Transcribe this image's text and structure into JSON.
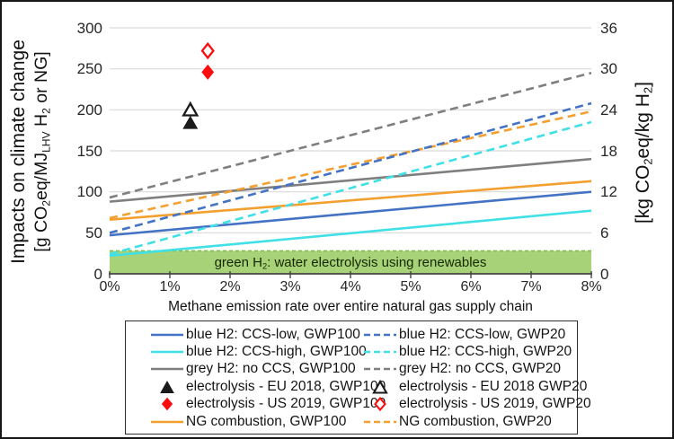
{
  "colors": {
    "blue": "#4472C4",
    "cyan": "#40E0E6",
    "grey": "#7F7F7F",
    "orange": "#F4A030",
    "red": "#FB0D0D",
    "black": "#1A1A1A",
    "band_fill": "#A7D277",
    "band_border": "#82BC50",
    "gridline": "#D9D9D9",
    "axis": "#444444"
  },
  "axes": {
    "y_left": {
      "title": "Impacts on climate change",
      "units": {
        "u1": "[g CO",
        "s1": "2",
        "u2": "eq/MJ",
        "s2": "LHV",
        "u3": " H",
        "s3": "2",
        "u4": " or NG]"
      }
    },
    "y_right": {
      "units": {
        "u1": "[kg CO",
        "s1": "2",
        "u2": "eq/kg H",
        "s2": "2",
        "u3": "]"
      }
    },
    "x": {
      "title": "Methane emission rate over entire natural gas supply chain"
    }
  },
  "band_label": {
    "p1": "green H",
    "s1": "2",
    "p2": ": water electrolysis using renewables"
  },
  "chart_data": {
    "type": "line",
    "x_axis": {
      "label": "Methane emission rate over entire natural gas supply chain",
      "min": 0,
      "max": 8,
      "tick_values": [
        0,
        1,
        2,
        3,
        4,
        5,
        6,
        7,
        8
      ],
      "tick_labels": [
        "0%",
        "1%",
        "2%",
        "3%",
        "4%",
        "5%",
        "6%",
        "7%",
        "8%"
      ]
    },
    "y_left_axis": {
      "label": "Impacts on climate change [g CO2eq/MJLHV H2 or NG]",
      "min": 0,
      "max": 300,
      "ticks": [
        0,
        50,
        100,
        150,
        200,
        250,
        300
      ]
    },
    "y_right_axis": {
      "label": "[kg CO2eq/kg H2]",
      "min": 0,
      "max": 36,
      "ticks": [
        0,
        6,
        12,
        18,
        24,
        30,
        36
      ]
    },
    "grid": "horizontal-only",
    "band": {
      "label": "green H2: water electrolysis using renewables",
      "from": 0,
      "to": 28
    },
    "series": [
      {
        "id": "blue-h2-ccs-high-gwp100",
        "label": "blue H2: CCS-high, GWP100",
        "color": "cyan",
        "style": "solid",
        "points": [
          [
            0,
            22
          ],
          [
            8,
            77
          ]
        ]
      },
      {
        "id": "blue-h2-ccs-low-gwp100",
        "label": "blue H2: CCS-low, GWP100",
        "color": "blue",
        "style": "solid",
        "points": [
          [
            0,
            47
          ],
          [
            8,
            100
          ]
        ]
      },
      {
        "id": "ng-combustion-gwp100",
        "label": "NG combustion, GWP100",
        "color": "orange",
        "style": "solid",
        "points": [
          [
            0,
            66
          ],
          [
            8,
            113
          ]
        ]
      },
      {
        "id": "grey-h2-no-ccs-gwp100",
        "label": "grey H2: no CCS, GWP100",
        "color": "grey",
        "style": "solid",
        "points": [
          [
            0,
            88
          ],
          [
            8,
            140
          ]
        ]
      },
      {
        "id": "blue-h2-ccs-high-gwp20",
        "label": "blue H2: CCS-high, GWP20",
        "color": "cyan",
        "style": "dashed",
        "points": [
          [
            0,
            24
          ],
          [
            8,
            185
          ]
        ]
      },
      {
        "id": "ng-combustion-gwp20",
        "label": "NG combustion, GWP20",
        "color": "orange",
        "style": "dashed",
        "points": [
          [
            0,
            68
          ],
          [
            8,
            198
          ]
        ]
      },
      {
        "id": "blue-h2-ccs-low-gwp20",
        "label": "blue H2: CCS-low, GWP20",
        "color": "blue",
        "style": "dashed",
        "points": [
          [
            0,
            50
          ],
          [
            8,
            208
          ]
        ]
      },
      {
        "id": "grey-h2-no-ccs-gwp20",
        "label": "grey H2: no CCS, GWP20",
        "color": "grey",
        "style": "dashed",
        "points": [
          [
            0,
            93
          ],
          [
            8,
            245
          ]
        ]
      }
    ],
    "points": [
      {
        "id": "electrolysis-eu-2018-gwp100",
        "label": "electrolysis - EU 2018, GWP100",
        "marker": "triangle",
        "fill": "filled",
        "color": "black",
        "x": 1.34,
        "y": 184
      },
      {
        "id": "electrolysis-eu-2018-gwp20",
        "label": "electrolysis - EU 2018 GWP20",
        "marker": "triangle",
        "fill": "open",
        "color": "black",
        "x": 1.34,
        "y": 200
      },
      {
        "id": "electrolysis-us-2019-gwp100",
        "label": "electrolysis - US 2019, GWP100",
        "marker": "diamond",
        "fill": "filled",
        "color": "red",
        "x": 1.63,
        "y": 246
      },
      {
        "id": "electrolysis-us-2019-gwp20",
        "label": "electrolysis - US 2019, GWP20",
        "marker": "diamond",
        "fill": "open",
        "color": "red",
        "x": 1.63,
        "y": 272
      }
    ],
    "legend_position": "bottom",
    "legend": {
      "col1": [
        {
          "swatch": "line",
          "style": "solid",
          "color": "blue",
          "label": "blue H2: CCS-low, GWP100"
        },
        {
          "swatch": "line",
          "style": "solid",
          "color": "cyan",
          "label": "blue H2: CCS-high, GWP100"
        },
        {
          "swatch": "line",
          "style": "solid",
          "color": "grey",
          "label": "grey H2: no CCS, GWP100"
        },
        {
          "swatch": "triangle",
          "style": "filled",
          "color": "black",
          "label": "electrolysis - EU 2018, GWP100"
        },
        {
          "swatch": "diamond",
          "style": "filled",
          "color": "red",
          "label": "electrolysis - US 2019, GWP100"
        },
        {
          "swatch": "line",
          "style": "solid",
          "color": "orange",
          "label": "NG combustion, GWP100"
        }
      ],
      "col2": [
        {
          "swatch": "line",
          "style": "dashed",
          "color": "blue",
          "label": "blue H2: CCS-low, GWP20"
        },
        {
          "swatch": "line",
          "style": "dashed",
          "color": "cyan",
          "label": "blue H2: CCS-high, GWP20"
        },
        {
          "swatch": "line",
          "style": "dashed",
          "color": "grey",
          "label": "grey H2: no CCS, GWP20"
        },
        {
          "swatch": "triangle",
          "style": "open",
          "color": "black",
          "label": "electrolysis - EU 2018 GWP20"
        },
        {
          "swatch": "diamond",
          "style": "open",
          "color": "red",
          "label": "electrolysis - US 2019, GWP20"
        },
        {
          "swatch": "line",
          "style": "dashed",
          "color": "orange",
          "label": "NG combustion, GWP20"
        }
      ]
    }
  }
}
